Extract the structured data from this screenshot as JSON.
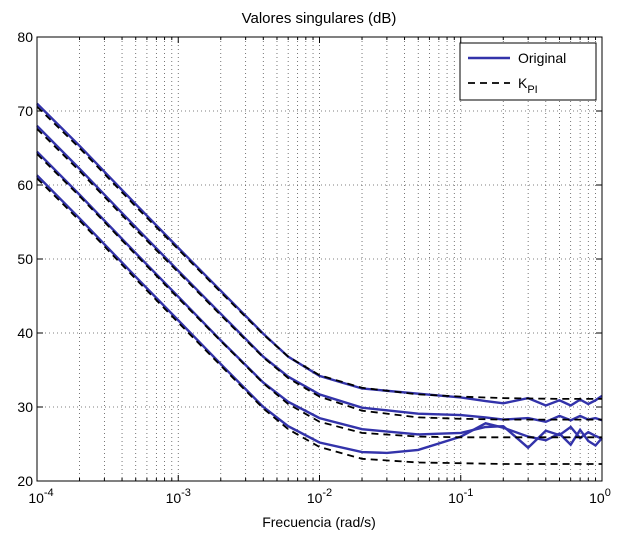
{
  "chart_data": {
    "type": "line",
    "title": "Valores singulares (dB)",
    "xlabel": "Frecuencia (rad/s)",
    "ylabel": "",
    "xscale": "log",
    "xlim": [
      0.0001,
      1
    ],
    "ylim": [
      20,
      80
    ],
    "grid": true,
    "legend_position": "top-right",
    "x_ticks": [
      {
        "value": 0.0001,
        "base": "10",
        "exp": "-4"
      },
      {
        "value": 0.001,
        "base": "10",
        "exp": "-3"
      },
      {
        "value": 0.01,
        "base": "10",
        "exp": "-2"
      },
      {
        "value": 0.1,
        "base": "10",
        "exp": "-1"
      },
      {
        "value": 1,
        "base": "10",
        "exp": "0"
      }
    ],
    "y_ticks": [
      20,
      30,
      40,
      50,
      60,
      70,
      80
    ],
    "legend": [
      {
        "label": "Original",
        "sub": "",
        "style": "solid",
        "color": "#3333aa"
      },
      {
        "label": "K",
        "sub": "PI",
        "style": "dashed",
        "color": "#000000"
      }
    ],
    "series": [
      {
        "name": "Original",
        "style": "solid",
        "color": "#3333aa",
        "lines": [
          {
            "x": [
              0.0001,
              0.0002,
              0.0005,
              0.001,
              0.002,
              0.004,
              0.006,
              0.01,
              0.02,
              0.05,
              0.1,
              0.15,
              0.2,
              0.3,
              0.4,
              0.5,
              0.6,
              0.7,
              0.8,
              0.9,
              1.0
            ],
            "y": [
              71.0,
              65.3,
              57.4,
              51.5,
              45.7,
              39.9,
              36.8,
              34.2,
              32.5,
              31.8,
              31.3,
              30.8,
              30.5,
              31.2,
              30.2,
              30.9,
              30.2,
              31.0,
              30.4,
              30.9,
              31.5
            ]
          },
          {
            "x": [
              0.0001,
              0.0002,
              0.0005,
              0.001,
              0.002,
              0.004,
              0.006,
              0.01,
              0.02,
              0.05,
              0.1,
              0.15,
              0.2,
              0.3,
              0.4,
              0.5,
              0.6,
              0.7,
              0.8,
              0.9,
              1.0
            ],
            "y": [
              68.0,
              62.2,
              54.3,
              48.4,
              42.6,
              36.8,
              34.1,
              31.7,
              29.9,
              29.1,
              28.9,
              28.6,
              28.3,
              28.5,
              28.0,
              28.8,
              28.2,
              28.8,
              28.3,
              28.5,
              28.2
            ]
          },
          {
            "x": [
              0.0001,
              0.0002,
              0.0005,
              0.001,
              0.002,
              0.004,
              0.006,
              0.01,
              0.02,
              0.05,
              0.1,
              0.15,
              0.2,
              0.3,
              0.4,
              0.5,
              0.6,
              0.7,
              0.8,
              0.9,
              1.0
            ],
            "y": [
              64.5,
              58.7,
              50.8,
              44.9,
              39.0,
              33.3,
              30.7,
              28.5,
              27.0,
              26.3,
              26.5,
              27.3,
              27.4,
              24.5,
              26.8,
              26.2,
              27.3,
              25.8,
              26.6,
              26.1,
              25.7
            ]
          },
          {
            "x": [
              0.0001,
              0.0002,
              0.0005,
              0.001,
              0.002,
              0.004,
              0.006,
              0.01,
              0.02,
              0.03,
              0.05,
              0.1,
              0.15,
              0.2,
              0.3,
              0.4,
              0.5,
              0.6,
              0.7,
              0.8,
              0.9,
              1.0
            ],
            "y": [
              61.3,
              55.5,
              47.6,
              41.7,
              35.8,
              30.0,
              27.4,
              25.2,
              23.9,
              23.8,
              24.2,
              26.0,
              27.8,
              27.2,
              26.0,
              25.5,
              26.4,
              24.9,
              26.9,
              25.4,
              24.8,
              25.8
            ]
          }
        ]
      },
      {
        "name": "K_PI",
        "style": "dashed",
        "color": "#000000",
        "lines": [
          {
            "x": [
              0.0001,
              0.0002,
              0.0005,
              0.001,
              0.002,
              0.004,
              0.006,
              0.01,
              0.02,
              0.05,
              0.1,
              0.2,
              0.5,
              1.0
            ],
            "y": [
              70.6,
              65.0,
              57.1,
              51.3,
              45.5,
              39.8,
              36.8,
              34.3,
              32.6,
              31.7,
              31.4,
              31.2,
              31.1,
              31.1
            ]
          },
          {
            "x": [
              0.0001,
              0.0002,
              0.0005,
              0.001,
              0.002,
              0.004,
              0.006,
              0.01,
              0.02,
              0.05,
              0.1,
              0.2,
              0.5,
              1.0
            ],
            "y": [
              67.6,
              61.9,
              54.0,
              48.2,
              42.4,
              36.7,
              33.9,
              31.4,
              29.5,
              28.6,
              28.4,
              28.3,
              28.3,
              28.3
            ]
          },
          {
            "x": [
              0.0001,
              0.0002,
              0.0005,
              0.001,
              0.002,
              0.004,
              0.006,
              0.01,
              0.02,
              0.05,
              0.1,
              0.2,
              0.5,
              1.0
            ],
            "y": [
              64.2,
              58.5,
              50.6,
              44.7,
              38.9,
              33.2,
              30.4,
              28.0,
              26.5,
              26.0,
              25.9,
              25.9,
              25.9,
              25.9
            ]
          },
          {
            "x": [
              0.0001,
              0.0002,
              0.0005,
              0.001,
              0.002,
              0.004,
              0.006,
              0.01,
              0.02,
              0.05,
              0.1,
              0.2,
              0.5,
              1.0
            ],
            "y": [
              60.9,
              55.2,
              47.3,
              41.4,
              35.6,
              29.8,
              27.0,
              24.6,
              23.0,
              22.5,
              22.4,
              22.3,
              22.3,
              22.3
            ]
          }
        ]
      }
    ]
  }
}
